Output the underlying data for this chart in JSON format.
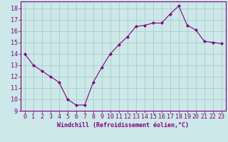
{
  "x": [
    0,
    1,
    2,
    3,
    4,
    5,
    6,
    7,
    8,
    9,
    10,
    11,
    12,
    13,
    14,
    15,
    16,
    17,
    18,
    19,
    20,
    21,
    22,
    23
  ],
  "y": [
    14,
    13,
    12.5,
    12,
    11.5,
    10,
    9.5,
    9.5,
    11.5,
    12.8,
    14,
    14.8,
    15.5,
    16.4,
    16.5,
    16.7,
    16.7,
    17.5,
    18.2,
    16.5,
    16.1,
    15.1,
    15.0,
    14.9
  ],
  "line_color": "#800080",
  "marker_color": "#800080",
  "bg_color": "#cce8e8",
  "grid_color": "#aacccc",
  "xlabel": "Windchill (Refroidissement éolien,°C)",
  "xlabel_fontsize": 6.0,
  "ylabel_ticks": [
    9,
    10,
    11,
    12,
    13,
    14,
    15,
    16,
    17,
    18
  ],
  "xlim": [
    -0.5,
    23.5
  ],
  "ylim": [
    9.0,
    18.6
  ],
  "tick_fontsize": 6.0
}
